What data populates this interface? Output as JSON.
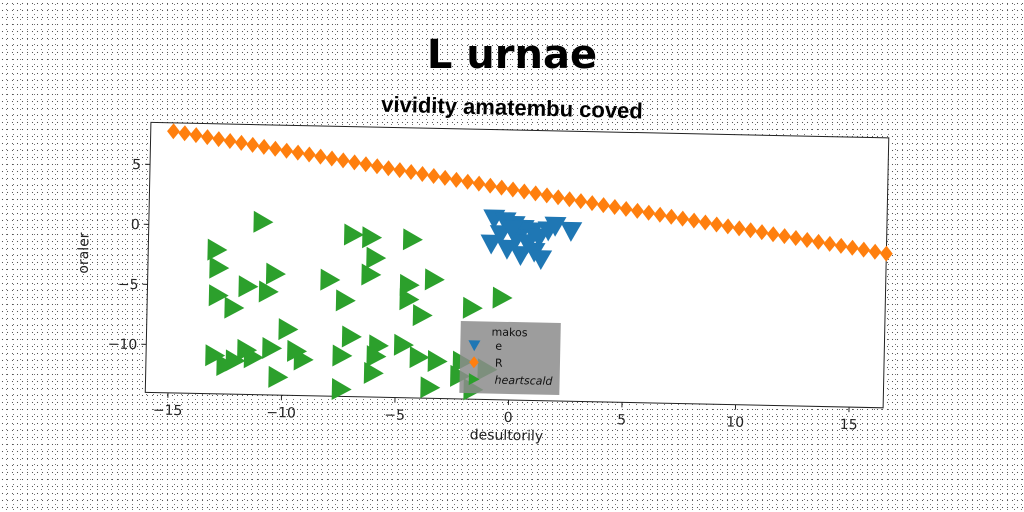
{
  "chart_data": {
    "type": "scatter",
    "title": "L urnae",
    "subtitle": "vividity amatembu coved",
    "xlabel": "desultorily",
    "ylabel": "oraler",
    "xlim": [
      -16,
      16.5
    ],
    "ylim": [
      -14,
      8.5
    ],
    "xticks": [
      -15,
      -10,
      -5,
      0,
      5,
      10,
      15
    ],
    "yticks": [
      5,
      0,
      -5,
      -10
    ],
    "grid": false,
    "legend": {
      "title": "makos",
      "placement": "lower-center"
    },
    "series": [
      {
        "name": "e",
        "marker": "triangle-down",
        "color": "#1f77b4",
        "points": [
          [
            -0.8,
            1.1
          ],
          [
            -0.3,
            0.9
          ],
          [
            0.1,
            0.6
          ],
          [
            0.5,
            0.3
          ],
          [
            0.9,
            0.1
          ],
          [
            -0.5,
            -0.2
          ],
          [
            0.2,
            -0.5
          ],
          [
            0.7,
            -0.9
          ],
          [
            1.2,
            -0.4
          ],
          [
            1.6,
            0.2
          ],
          [
            -0.2,
            -1.4
          ],
          [
            0.4,
            -1.9
          ],
          [
            1.0,
            -1.6
          ],
          [
            -0.9,
            -1.0
          ],
          [
            1.9,
            0.6
          ],
          [
            2.6,
            0.2
          ],
          [
            0.0,
            0.2
          ],
          [
            1.3,
            -2.2
          ]
        ]
      },
      {
        "name": "R",
        "marker": "diamond",
        "color": "#ff7f0e",
        "points": [
          [
            -15.0,
            7.8
          ],
          [
            -14.5,
            7.66
          ],
          [
            -14.0,
            7.52
          ],
          [
            -13.5,
            7.37
          ],
          [
            -13.0,
            7.23
          ],
          [
            -12.5,
            7.09
          ],
          [
            -12.0,
            6.95
          ],
          [
            -11.5,
            6.81
          ],
          [
            -11.0,
            6.66
          ],
          [
            -10.5,
            6.52
          ],
          [
            -10.0,
            6.38
          ],
          [
            -9.5,
            6.24
          ],
          [
            -9.0,
            6.1
          ],
          [
            -8.5,
            5.95
          ],
          [
            -8.0,
            5.81
          ],
          [
            -7.5,
            5.67
          ],
          [
            -7.0,
            5.53
          ],
          [
            -6.5,
            5.39
          ],
          [
            -6.0,
            5.24
          ],
          [
            -5.5,
            5.1
          ],
          [
            -5.0,
            4.96
          ],
          [
            -4.5,
            4.82
          ],
          [
            -4.0,
            4.68
          ],
          [
            -3.5,
            4.53
          ],
          [
            -3.0,
            4.39
          ],
          [
            -2.5,
            4.25
          ],
          [
            -2.0,
            4.11
          ],
          [
            -1.5,
            3.97
          ],
          [
            -1.0,
            3.82
          ],
          [
            -0.5,
            3.68
          ],
          [
            0.0,
            3.54
          ],
          [
            0.5,
            3.4
          ],
          [
            1.0,
            3.26
          ],
          [
            1.5,
            3.11
          ],
          [
            2.0,
            2.97
          ],
          [
            2.5,
            2.83
          ],
          [
            3.0,
            2.69
          ],
          [
            3.5,
            2.55
          ],
          [
            4.0,
            2.4
          ],
          [
            4.5,
            2.26
          ],
          [
            5.0,
            2.12
          ],
          [
            5.5,
            1.98
          ],
          [
            6.0,
            1.84
          ],
          [
            6.5,
            1.69
          ],
          [
            7.0,
            1.55
          ],
          [
            7.5,
            1.41
          ],
          [
            8.0,
            1.27
          ],
          [
            8.5,
            1.13
          ],
          [
            9.0,
            0.98
          ],
          [
            9.5,
            0.84
          ],
          [
            10.0,
            0.7
          ],
          [
            10.5,
            0.56
          ],
          [
            11.0,
            0.42
          ],
          [
            11.5,
            0.27
          ],
          [
            12.0,
            0.13
          ],
          [
            12.5,
            -0.01
          ],
          [
            13.0,
            -0.15
          ],
          [
            13.5,
            -0.29
          ],
          [
            14.0,
            -0.44
          ],
          [
            14.5,
            -0.58
          ],
          [
            15.0,
            -0.72
          ],
          [
            15.5,
            -0.86
          ],
          [
            16.0,
            -1.01
          ],
          [
            16.5,
            -1.15
          ]
        ]
      },
      {
        "name": "heartscald",
        "marker": "triangle-right",
        "color": "#2ca02c",
        "points": [
          [
            -11.0,
            0.4
          ],
          [
            -7.0,
            -0.5
          ],
          [
            -6.2,
            -0.7
          ],
          [
            -4.4,
            -0.8
          ],
          [
            -13.0,
            -2.0
          ],
          [
            -6.0,
            -2.4
          ],
          [
            -12.9,
            -3.5
          ],
          [
            -10.4,
            -3.9
          ],
          [
            -6.2,
            -3.8
          ],
          [
            -3.4,
            -4.1
          ],
          [
            -8.0,
            -4.3
          ],
          [
            -4.5,
            -4.6
          ],
          [
            -11.6,
            -5.0
          ],
          [
            -10.7,
            -5.4
          ],
          [
            -12.9,
            -5.8
          ],
          [
            -7.3,
            -6.0
          ],
          [
            -4.5,
            -5.8
          ],
          [
            -12.2,
            -6.8
          ],
          [
            -1.7,
            -6.4
          ],
          [
            -0.4,
            -5.5
          ],
          [
            -3.9,
            -7.1
          ],
          [
            -9.8,
            -8.5
          ],
          [
            -7.0,
            -9.0
          ],
          [
            -5.8,
            -9.7
          ],
          [
            -4.7,
            -9.6
          ],
          [
            -10.5,
            -10.1
          ],
          [
            -9.4,
            -10.3
          ],
          [
            -7.4,
            -10.6
          ],
          [
            -13.0,
            -10.8
          ],
          [
            -12.1,
            -11.2
          ],
          [
            -11.3,
            -10.9
          ],
          [
            -9.1,
            -11.0
          ],
          [
            -5.9,
            -10.6
          ],
          [
            -4.0,
            -10.6
          ],
          [
            -3.2,
            -10.9
          ],
          [
            -2.1,
            -10.9
          ],
          [
            -12.5,
            -11.6
          ],
          [
            -10.2,
            -12.5
          ],
          [
            -6.0,
            -12.0
          ],
          [
            -3.5,
            -13.1
          ],
          [
            -2.2,
            -12.1
          ],
          [
            -1.6,
            -13.2
          ],
          [
            -7.4,
            -13.4
          ],
          [
            -11.6,
            -10.3
          ],
          [
            -1.0,
            -11.5
          ]
        ]
      }
    ]
  }
}
